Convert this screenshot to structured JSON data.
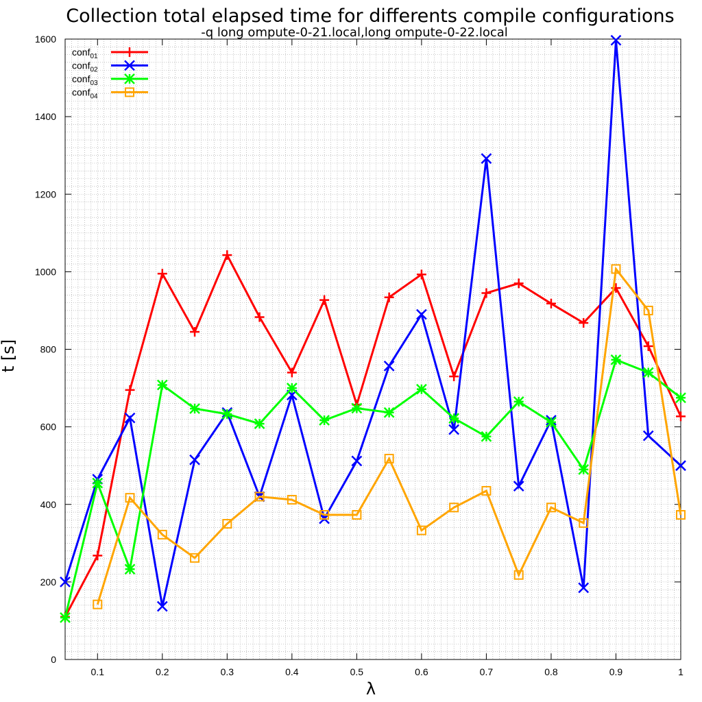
{
  "chart_data": {
    "type": "line",
    "title": "Collection total elapsed time for differents compile configurations",
    "subtitle": "-q long ompute-0-21.local,long ompute-0-22.local",
    "xlabel": "λ",
    "ylabel": "t [s]",
    "xlim": [
      0.05,
      1
    ],
    "ylim": [
      0,
      1600
    ],
    "xticks": [
      "0.1",
      "0.2",
      "0.3",
      "0.4",
      "0.5",
      "0.6",
      "0.7",
      "0.8",
      "0.9",
      "1"
    ],
    "xtick_values": [
      0.1,
      0.2,
      0.3,
      0.4,
      0.5,
      0.6,
      0.7,
      0.8,
      0.9,
      1.0
    ],
    "yticks": [
      "0",
      "200",
      "400",
      "600",
      "800",
      "1000",
      "1200",
      "1400",
      "1600"
    ],
    "ytick_values": [
      0,
      200,
      400,
      600,
      800,
      1000,
      1200,
      1400,
      1600
    ],
    "grid": true,
    "legend_position": "top-left",
    "series": [
      {
        "name": "conf",
        "sub": "01",
        "color": "#ff0000",
        "marker": "plus",
        "x": [
          0.05,
          0.1,
          0.15,
          0.2,
          0.25,
          0.3,
          0.35,
          0.4,
          0.45,
          0.5,
          0.55,
          0.6,
          0.65,
          0.7,
          0.75,
          0.8,
          0.85,
          0.9,
          0.95,
          1.0
        ],
        "y": [
          110,
          268,
          695,
          995,
          845,
          1043,
          883,
          740,
          927,
          657,
          934,
          993,
          730,
          945,
          970,
          918,
          868,
          958,
          808,
          627
        ]
      },
      {
        "name": "conf",
        "sub": "02",
        "color": "#0000ff",
        "marker": "cross",
        "x": [
          0.05,
          0.1,
          0.15,
          0.2,
          0.25,
          0.3,
          0.35,
          0.4,
          0.45,
          0.5,
          0.55,
          0.6,
          0.65,
          0.7,
          0.75,
          0.8,
          0.85,
          0.9,
          0.95,
          1.0
        ],
        "y": [
          200,
          465,
          623,
          137,
          515,
          637,
          420,
          682,
          363,
          512,
          757,
          890,
          593,
          1292,
          447,
          617,
          185,
          1597,
          577,
          500
        ]
      },
      {
        "name": "conf",
        "sub": "03",
        "color": "#00ff00",
        "marker": "star",
        "x": [
          0.05,
          0.1,
          0.15,
          0.2,
          0.25,
          0.3,
          0.35,
          0.4,
          0.45,
          0.5,
          0.55,
          0.6,
          0.65,
          0.7,
          0.75,
          0.8,
          0.85,
          0.9,
          0.95,
          1.0
        ],
        "y": [
          108,
          455,
          233,
          708,
          647,
          633,
          608,
          700,
          617,
          648,
          637,
          697,
          622,
          575,
          665,
          612,
          490,
          773,
          740,
          675
        ]
      },
      {
        "name": "conf",
        "sub": "04",
        "color": "#ffa500",
        "marker": "square",
        "x": [
          0.1,
          0.15,
          0.2,
          0.25,
          0.3,
          0.35,
          0.4,
          0.45,
          0.5,
          0.55,
          0.6,
          0.65,
          0.7,
          0.75,
          0.8,
          0.85,
          0.9,
          0.95,
          1.0
        ],
        "y": [
          142,
          417,
          322,
          262,
          350,
          420,
          412,
          373,
          373,
          518,
          333,
          392,
          435,
          218,
          392,
          352,
          1007,
          900,
          373
        ]
      }
    ]
  }
}
